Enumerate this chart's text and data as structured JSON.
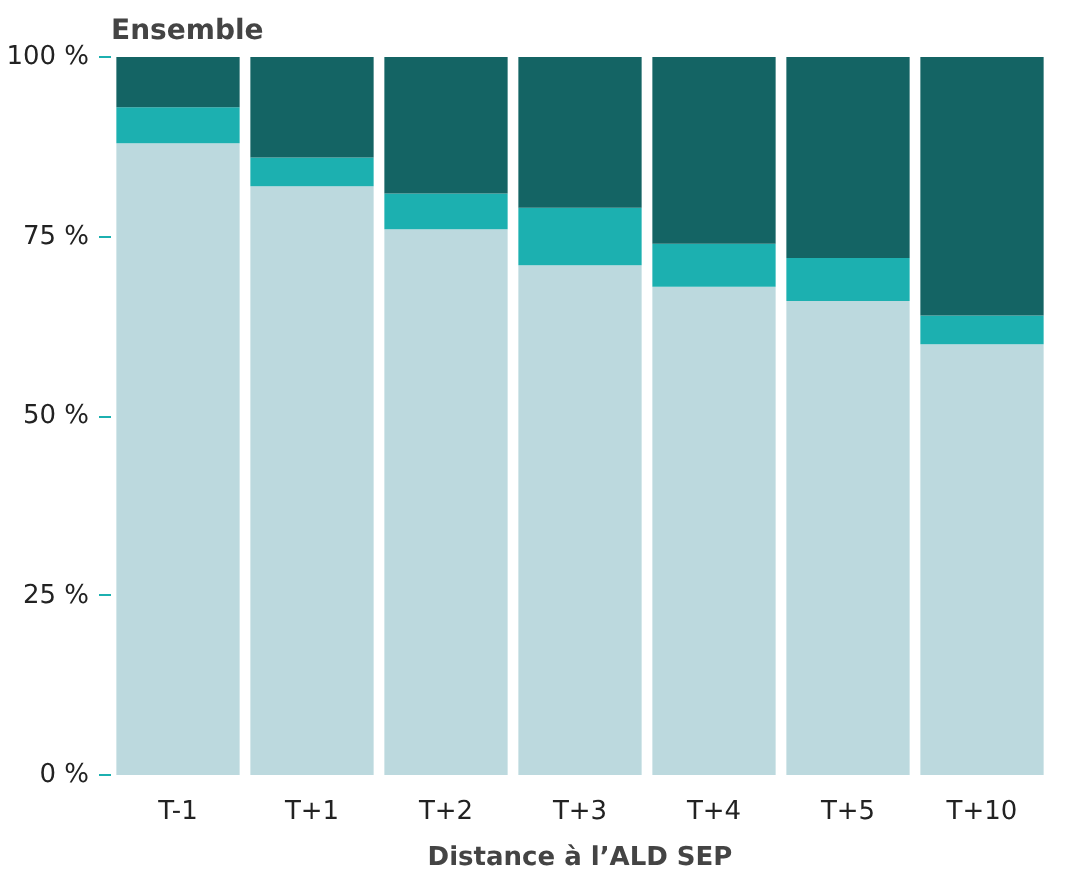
{
  "chart_data": {
    "type": "bar",
    "title": "Ensemble",
    "xlabel": "Distance à l’ALD SEP",
    "stacked": true,
    "categories": [
      "T-1",
      "T+1",
      "T+2",
      "T+3",
      "T+4",
      "T+5",
      "T+10"
    ],
    "series": [
      {
        "color": "#bcd9de",
        "values": [
          88,
          82,
          76,
          71,
          68,
          66,
          60
        ]
      },
      {
        "color": "#1cb0b0",
        "values": [
          5,
          4,
          5,
          8,
          6,
          6,
          4
        ]
      },
      {
        "color": "#146464",
        "values": [
          7,
          14,
          19,
          21,
          26,
          28,
          36
        ]
      }
    ],
    "ylim": [
      0,
      100
    ],
    "yticks": [
      {
        "value": 0,
        "label": "0 %"
      },
      {
        "value": 25,
        "label": "25 %"
      },
      {
        "value": 50,
        "label": "50 %"
      },
      {
        "value": 75,
        "label": "75 %"
      },
      {
        "value": 100,
        "label": "100 %"
      }
    ],
    "grid": false
  }
}
